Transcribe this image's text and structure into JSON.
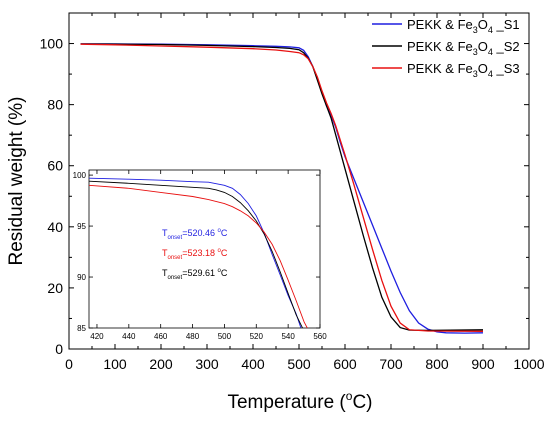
{
  "chart_data": [
    {
      "type": "line",
      "xlabel_main": "Temperature (",
      "xlabel_sup": "o",
      "xlabel_end": "C)",
      "ylabel": "Residual weight (%)",
      "xlim": [
        0,
        1000
      ],
      "ylim": [
        0,
        110
      ],
      "x_ticks": [
        0,
        100,
        200,
        300,
        400,
        500,
        600,
        700,
        800,
        900,
        1000
      ],
      "y_ticks": [
        0,
        20,
        40,
        60,
        80,
        100
      ],
      "grid": false,
      "legend_position": "top-right",
      "series": [
        {
          "name_main": "PEKK & Fe",
          "name_sub1": "3",
          "name_mid": "O",
          "name_sub2": "4",
          "name_end": " _S1",
          "color": "#1f1fe0",
          "points": [
            [
              25,
              99.9
            ],
            [
              100,
              99.9
            ],
            [
              200,
              99.8
            ],
            [
              300,
              99.6
            ],
            [
              400,
              99.3
            ],
            [
              450,
              99.1
            ],
            [
              480,
              98.9
            ],
            [
              500,
              98.6
            ],
            [
              510,
              97.8
            ],
            [
              520,
              95.7
            ],
            [
              530,
              92.5
            ],
            [
              540,
              88.5
            ],
            [
              550,
              84.0
            ],
            [
              560,
              79.5
            ],
            [
              570,
              76.5
            ],
            [
              580,
              72.5
            ],
            [
              590,
              67.5
            ],
            [
              600,
              63.0
            ],
            [
              620,
              55.5
            ],
            [
              640,
              48.0
            ],
            [
              660,
              40.5
            ],
            [
              680,
              33.0
            ],
            [
              700,
              25.5
            ],
            [
              720,
              18.5
            ],
            [
              740,
              12.5
            ],
            [
              760,
              8.5
            ],
            [
              780,
              6.5
            ],
            [
              800,
              5.6
            ],
            [
              820,
              5.3
            ],
            [
              860,
              5.2
            ],
            [
              900,
              5.3
            ]
          ]
        },
        {
          "name_main": "PEKK & Fe",
          "name_sub1": "3",
          "name_mid": "O",
          "name_sub2": "4",
          "name_end": " _S2",
          "color": "#000000",
          "points": [
            [
              25,
              99.9
            ],
            [
              100,
              99.8
            ],
            [
              200,
              99.7
            ],
            [
              300,
              99.4
            ],
            [
              400,
              99.0
            ],
            [
              450,
              98.7
            ],
            [
              480,
              98.4
            ],
            [
              500,
              98.0
            ],
            [
              510,
              97.0
            ],
            [
              520,
              95.2
            ],
            [
              530,
              92.5
            ],
            [
              540,
              88.0
            ],
            [
              550,
              83.5
            ],
            [
              560,
              79.5
            ],
            [
              570,
              75.5
            ],
            [
              580,
              70.0
            ],
            [
              600,
              59.0
            ],
            [
              620,
              48.0
            ],
            [
              640,
              37.0
            ],
            [
              660,
              26.5
            ],
            [
              680,
              17.0
            ],
            [
              700,
              10.5
            ],
            [
              720,
              7.0
            ],
            [
              740,
              6.2
            ],
            [
              780,
              6.1
            ],
            [
              900,
              6.3
            ]
          ]
        },
        {
          "name_main": "PEKK & Fe",
          "name_sub1": "3",
          "name_mid": "O",
          "name_sub2": "4",
          "name_end": " _S3",
          "color": "#e81010",
          "points": [
            [
              25,
              99.8
            ],
            [
              100,
              99.6
            ],
            [
              200,
              99.2
            ],
            [
              300,
              98.8
            ],
            [
              400,
              98.3
            ],
            [
              450,
              97.9
            ],
            [
              480,
              97.4
            ],
            [
              500,
              97.0
            ],
            [
              510,
              96.3
            ],
            [
              520,
              95.0
            ],
            [
              530,
              92.5
            ],
            [
              540,
              89.0
            ],
            [
              550,
              84.5
            ],
            [
              560,
              80.5
            ],
            [
              570,
              77.0
            ],
            [
              580,
              73.0
            ],
            [
              600,
              63.5
            ],
            [
              620,
              53.5
            ],
            [
              640,
              43.0
            ],
            [
              660,
              32.5
            ],
            [
              680,
              22.5
            ],
            [
              700,
              14.0
            ],
            [
              720,
              8.5
            ],
            [
              740,
              6.3
            ],
            [
              780,
              5.9
            ],
            [
              900,
              5.8
            ]
          ]
        }
      ]
    },
    {
      "type": "line",
      "xlim": [
        415,
        560
      ],
      "ylim": [
        85,
        100.5
      ],
      "x_ticks": [
        420,
        440,
        460,
        480,
        500,
        520,
        540,
        560
      ],
      "y_ticks": [
        85,
        90,
        95,
        100
      ],
      "annotations": [
        {
          "main": "T",
          "sub": "onset",
          "value": "=520.46 ",
          "sup": "o",
          "unit": "C",
          "color": "#1f1fe0"
        },
        {
          "main": "T",
          "sub": "onset",
          "value": "=523.18 ",
          "sup": "o",
          "unit": "C",
          "color": "#e81010"
        },
        {
          "main": "T",
          "sub": "onset",
          "value": "=529.61 ",
          "sup": "o",
          "unit": "C",
          "color": "#000000"
        }
      ],
      "series": [
        {
          "color": "#1f1fe0",
          "points": [
            [
              415,
              99.7
            ],
            [
              440,
              99.6
            ],
            [
              460,
              99.5
            ],
            [
              480,
              99.35
            ],
            [
              490,
              99.3
            ],
            [
              500,
              99.0
            ],
            [
              505,
              98.7
            ],
            [
              510,
              98.1
            ],
            [
              515,
              97.2
            ],
            [
              520,
              96.0
            ],
            [
              525,
              94.3
            ],
            [
              530,
              92.2
            ],
            [
              535,
              90.2
            ],
            [
              540,
              88.2
            ],
            [
              545,
              86.4
            ],
            [
              548,
              85.0
            ]
          ]
        },
        {
          "color": "#000000",
          "points": [
            [
              415,
              99.4
            ],
            [
              440,
              99.2
            ],
            [
              460,
              99.0
            ],
            [
              480,
              98.8
            ],
            [
              490,
              98.7
            ],
            [
              495,
              98.55
            ],
            [
              500,
              98.3
            ],
            [
              505,
              97.9
            ],
            [
              510,
              97.3
            ],
            [
              515,
              96.5
            ],
            [
              520,
              95.5
            ],
            [
              525,
              94.2
            ],
            [
              530,
              92.5
            ],
            [
              535,
              90.5
            ],
            [
              540,
              88.4
            ],
            [
              545,
              86.3
            ],
            [
              549,
              85.0
            ]
          ]
        },
        {
          "color": "#e81010",
          "points": [
            [
              415,
              99.0
            ],
            [
              440,
              98.7
            ],
            [
              460,
              98.3
            ],
            [
              480,
              97.9
            ],
            [
              490,
              97.6
            ],
            [
              500,
              97.2
            ],
            [
              505,
              96.9
            ],
            [
              510,
              96.5
            ],
            [
              515,
              96.0
            ],
            [
              520,
              95.3
            ],
            [
              525,
              94.4
            ],
            [
              530,
              93.2
            ],
            [
              535,
              91.6
            ],
            [
              540,
              89.7
            ],
            [
              545,
              87.7
            ],
            [
              550,
              85.6
            ],
            [
              552,
              85.0
            ]
          ]
        }
      ]
    }
  ]
}
